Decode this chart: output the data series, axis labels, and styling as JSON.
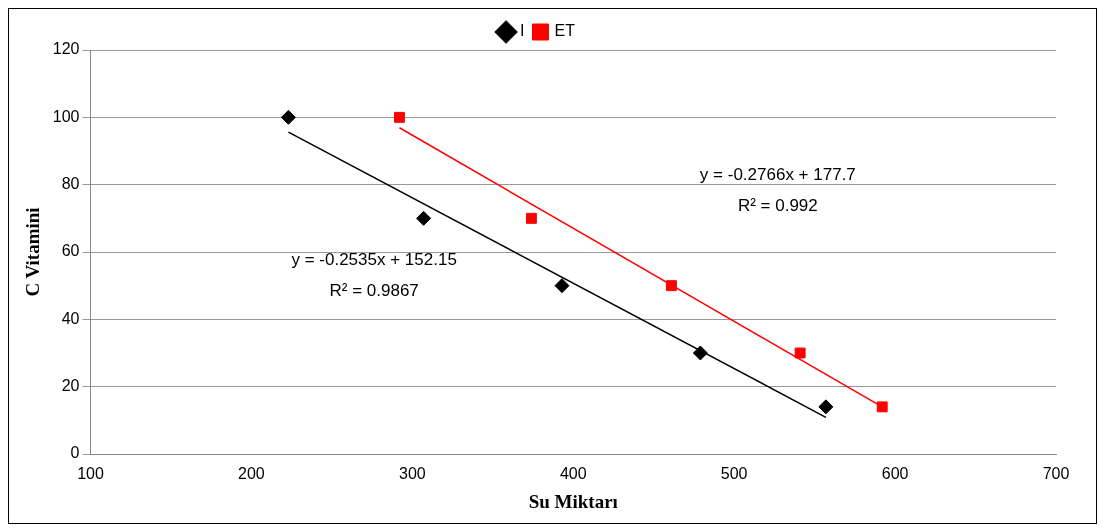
{
  "chart_data": {
    "type": "scatter",
    "xlabel": "Su Miktarı",
    "ylabel": "C Vitamini",
    "xlim": [
      100,
      700
    ],
    "xticks": [
      100,
      200,
      300,
      400,
      500,
      600,
      700
    ],
    "ylim": [
      0,
      120
    ],
    "yticks": [
      0,
      20,
      40,
      60,
      80,
      100,
      120
    ],
    "grid": "y",
    "legend": "top",
    "series": [
      {
        "name": "I",
        "color": "#000000",
        "marker": "diamond",
        "x": [
          223,
          307,
          393,
          479,
          557
        ],
        "values": [
          100,
          70,
          50,
          30,
          14
        ]
      },
      {
        "name": "ET",
        "color": "#ff0000",
        "marker": "square",
        "x": [
          292,
          374,
          461,
          541,
          592
        ],
        "values": [
          100,
          70,
          50,
          30,
          14
        ]
      },
      {
        "type": "line",
        "color": "#000000",
        "marker": "none",
        "x": [
          223,
          557
        ],
        "values": [
          95.6,
          10.9
        ]
      },
      {
        "type": "line",
        "color": "#ff0000",
        "marker": "none",
        "x": [
          292,
          592
        ],
        "values": [
          96.9,
          14.0
        ]
      }
    ],
    "annotations": [
      "y = -0.2535x + 152.15",
      "R² = 0.9867",
      "y = -0.2766x + 177.7",
      "R² = 0.992"
    ]
  }
}
